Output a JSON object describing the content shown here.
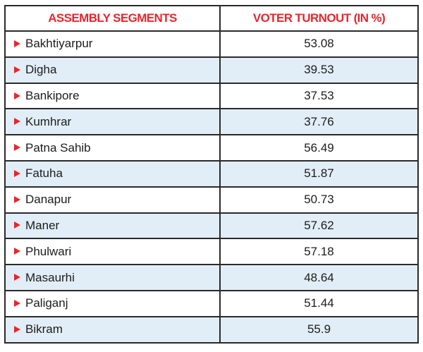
{
  "chart_data": {
    "type": "table",
    "columns": [
      "ASSEMBLY SEGMENTS",
      "VOTER TURNOUT (IN %)"
    ],
    "rows": [
      {
        "segment": "Bakhtiyarpur",
        "turnout": "53.08"
      },
      {
        "segment": "Digha",
        "turnout": "39.53"
      },
      {
        "segment": "Bankipore",
        "turnout": "37.53"
      },
      {
        "segment": "Kumhrar",
        "turnout": "37.76"
      },
      {
        "segment": "Patna Sahib",
        "turnout": "56.49"
      },
      {
        "segment": "Fatuha",
        "turnout": "51.87"
      },
      {
        "segment": "Danapur",
        "turnout": "50.73"
      },
      {
        "segment": "Maner",
        "turnout": "57.62"
      },
      {
        "segment": "Phulwari",
        "turnout": "57.18"
      },
      {
        "segment": "Masaurhi",
        "turnout": "48.64"
      },
      {
        "segment": "Paliganj",
        "turnout": "51.44"
      },
      {
        "segment": "Bikram",
        "turnout": "55.9"
      }
    ]
  },
  "colors": {
    "header_text": "#e8262c",
    "bullet": "#e8262c",
    "row_shade": "#e2eef7",
    "border": "#2a2a2a"
  },
  "icons": {
    "bullet": "triangle-right-icon"
  }
}
